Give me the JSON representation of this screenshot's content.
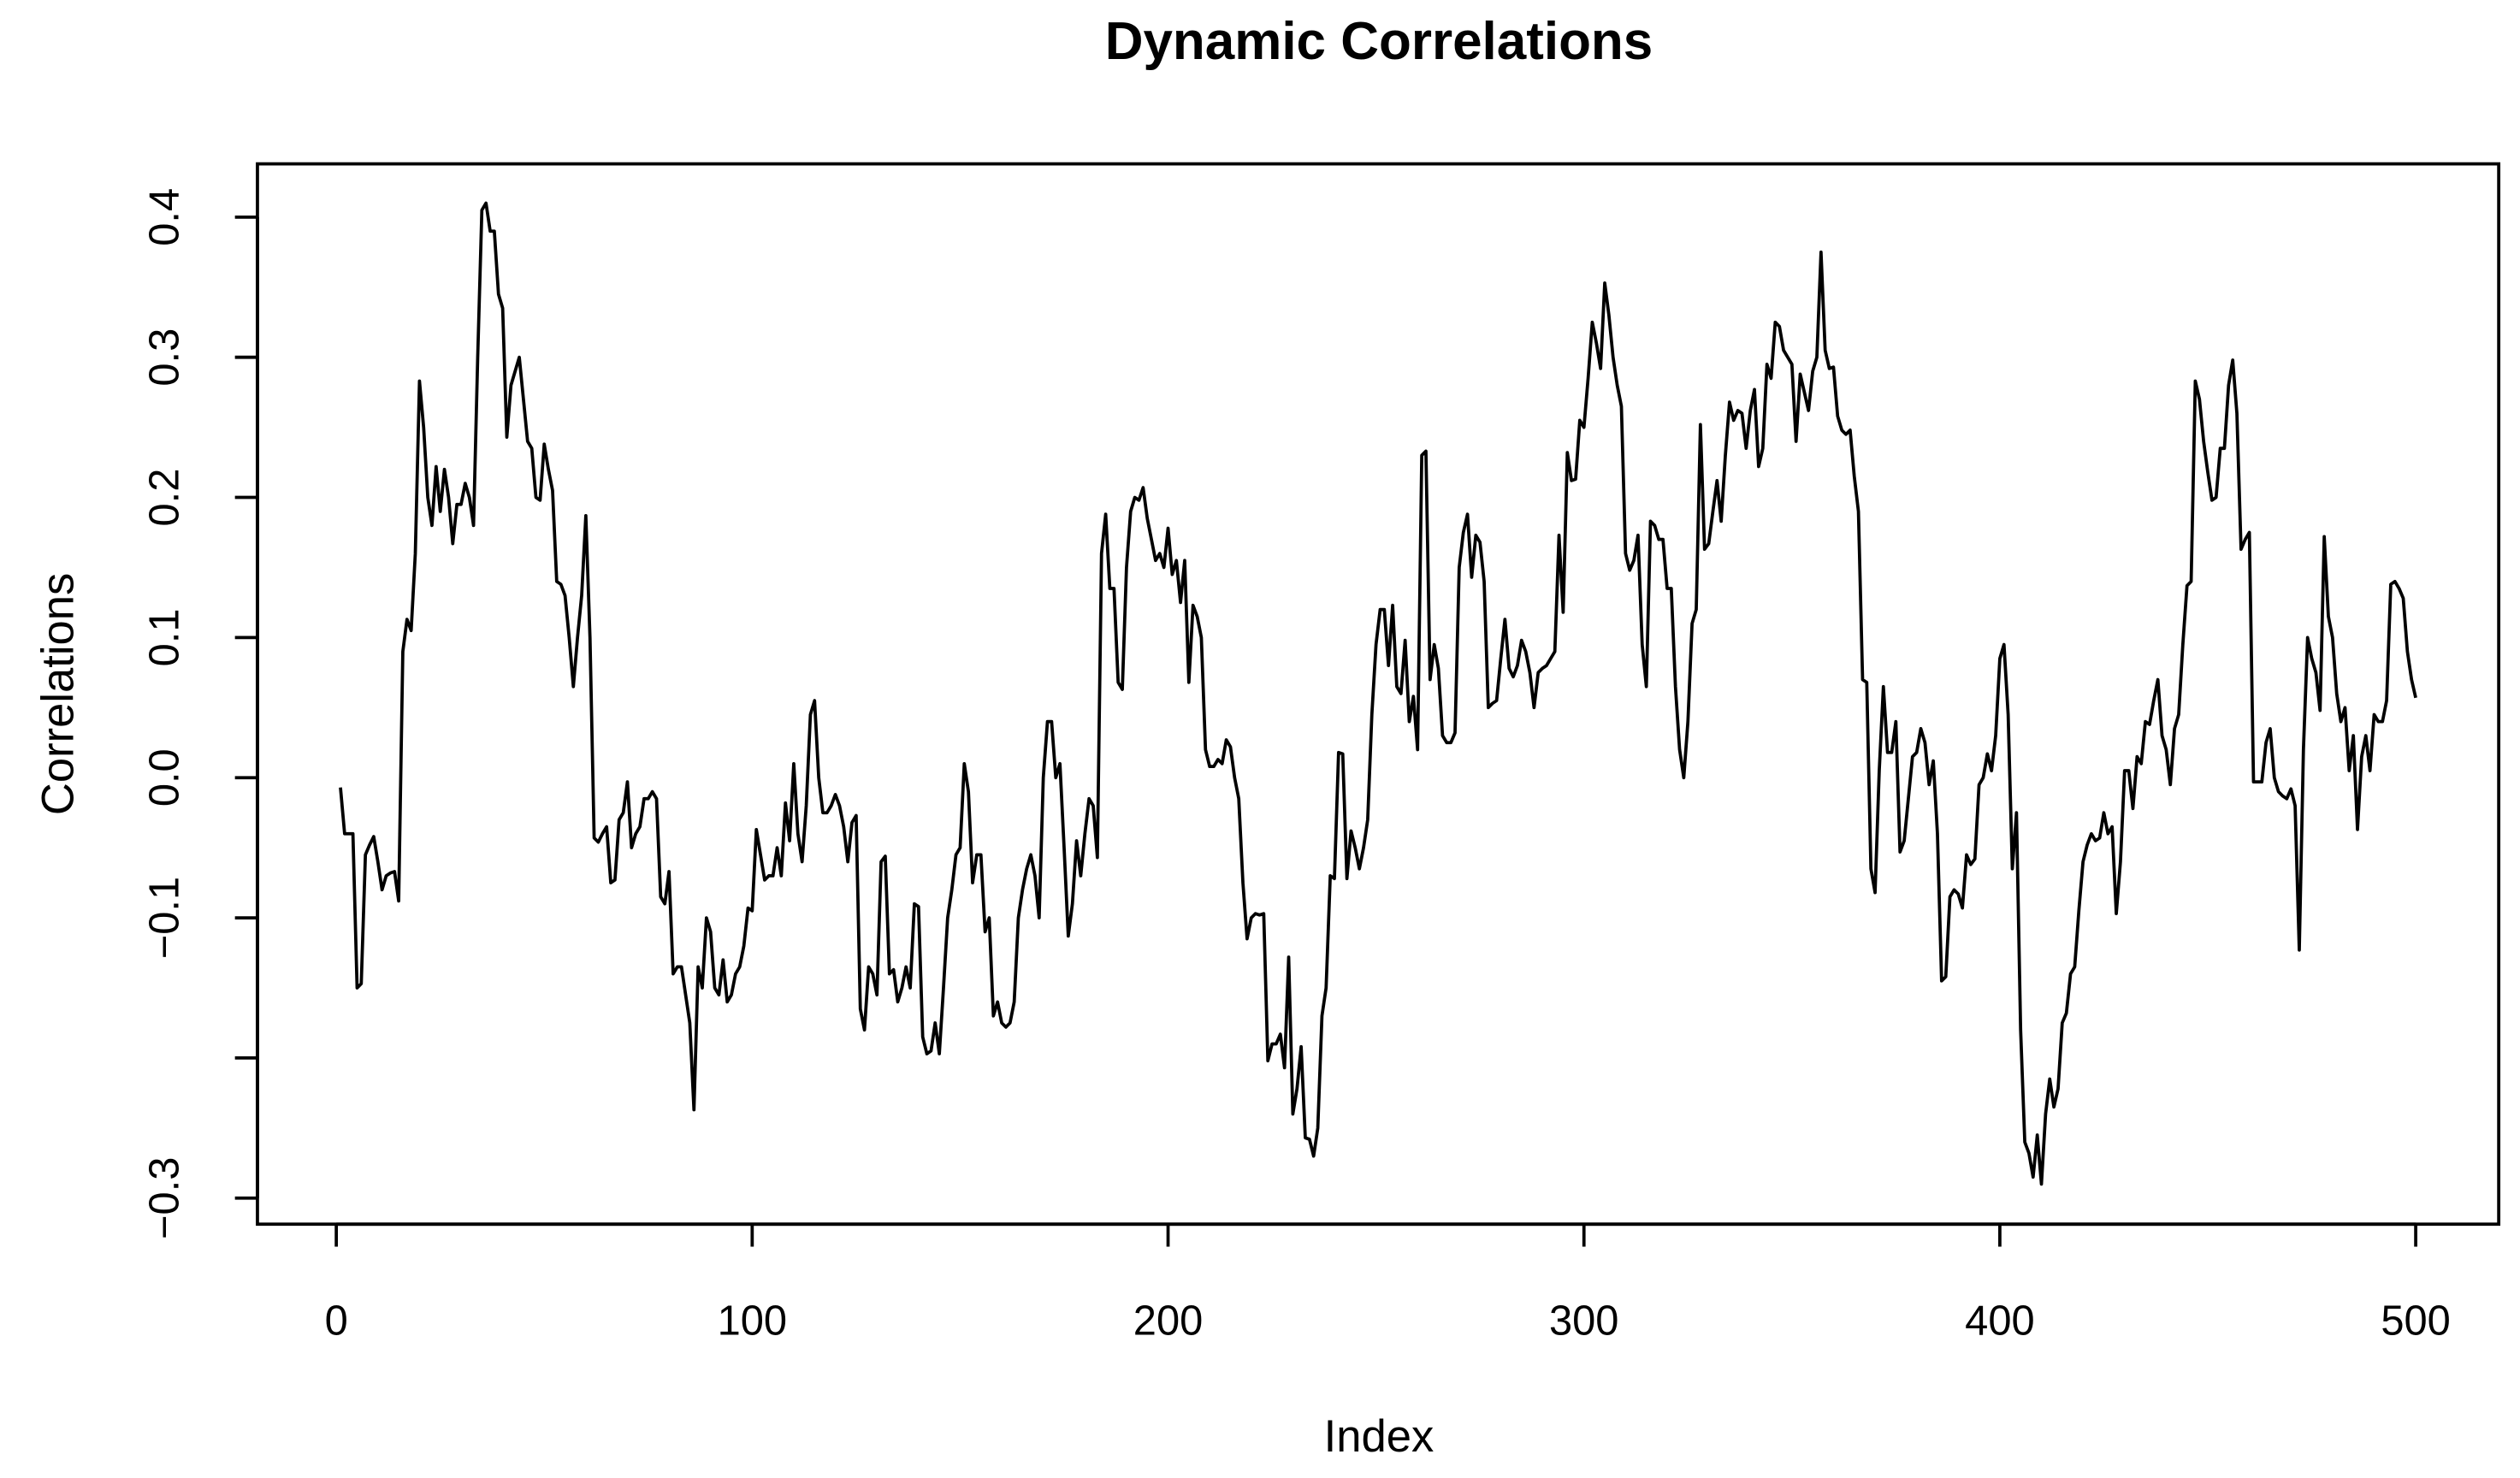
{
  "chart_data": {
    "type": "line",
    "title": "Dynamic Correlations",
    "x_label": "Index",
    "y_label": "Correlations",
    "color": "#000000",
    "xlim": [
      -18.96,
      519.96
    ],
    "ylim": [
      -0.3186,
      0.438
    ],
    "xticks": [
      0,
      100,
      200,
      300,
      400,
      500
    ],
    "yticks": [
      {
        "value": -0.3,
        "label": "−0.3"
      },
      {
        "value": -0.2,
        "label": null
      },
      {
        "value": -0.1,
        "label": "−0.1"
      },
      {
        "value": 0,
        "label": "0.0"
      },
      0.1,
      0.2,
      0.3,
      0.4
    ],
    "x": [
      1,
      2,
      3,
      4,
      5,
      6,
      7,
      8,
      9,
      10,
      11,
      12,
      13,
      14,
      15,
      16,
      17,
      18,
      19,
      20,
      21,
      22,
      23,
      24,
      25,
      26,
      27,
      28,
      29,
      30,
      31,
      32,
      33,
      34,
      35,
      36,
      37,
      38,
      39,
      40,
      41,
      42,
      43,
      44,
      45,
      46,
      47,
      48,
      49,
      50,
      51,
      52,
      53,
      54,
      55,
      56,
      57,
      58,
      59,
      60,
      61,
      62,
      63,
      64,
      65,
      66,
      67,
      68,
      69,
      70,
      71,
      72,
      73,
      74,
      75,
      76,
      77,
      78,
      79,
      80,
      81,
      82,
      83,
      84,
      85,
      86,
      87,
      88,
      89,
      90,
      91,
      92,
      93,
      94,
      95,
      96,
      97,
      98,
      99,
      100,
      101,
      102,
      103,
      104,
      105,
      106,
      107,
      108,
      109,
      110,
      111,
      112,
      113,
      114,
      115,
      116,
      117,
      118,
      119,
      120,
      121,
      122,
      123,
      124,
      125,
      126,
      127,
      128,
      129,
      130,
      131,
      132,
      133,
      134,
      135,
      136,
      137,
      138,
      139,
      140,
      141,
      142,
      143,
      144,
      145,
      146,
      147,
      148,
      149,
      150,
      151,
      152,
      153,
      154,
      155,
      156,
      157,
      158,
      159,
      160,
      161,
      162,
      163,
      164,
      165,
      166,
      167,
      168,
      169,
      170,
      171,
      172,
      173,
      174,
      175,
      176,
      177,
      178,
      179,
      180,
      181,
      182,
      183,
      184,
      185,
      186,
      187,
      188,
      189,
      190,
      191,
      192,
      193,
      194,
      195,
      196,
      197,
      198,
      199,
      200,
      201,
      202,
      203,
      204,
      205,
      206,
      207,
      208,
      209,
      210,
      211,
      212,
      213,
      214,
      215,
      216,
      217,
      218,
      219,
      220,
      221,
      222,
      223,
      224,
      225,
      226,
      227,
      228,
      229,
      230,
      231,
      232,
      233,
      234,
      235,
      236,
      237,
      238,
      239,
      240,
      241,
      242,
      243,
      244,
      245,
      246,
      247,
      248,
      249,
      250,
      251,
      252,
      253,
      254,
      255,
      256,
      257,
      258,
      259,
      260,
      261,
      262,
      263,
      264,
      265,
      266,
      267,
      268,
      269,
      270,
      271,
      272,
      273,
      274,
      275,
      276,
      277,
      278,
      279,
      280,
      281,
      282,
      283,
      284,
      285,
      286,
      287,
      288,
      289,
      290,
      291,
      292,
      293,
      294,
      295,
      296,
      297,
      298,
      299,
      300,
      301,
      302,
      303,
      304,
      305,
      306,
      307,
      308,
      309,
      310,
      311,
      312,
      313,
      314,
      315,
      316,
      317,
      318,
      319,
      320,
      321,
      322,
      323,
      324,
      325,
      326,
      327,
      328,
      329,
      330,
      331,
      332,
      333,
      334,
      335,
      336,
      337,
      338,
      339,
      340,
      341,
      342,
      343,
      344,
      345,
      346,
      347,
      348,
      349,
      350,
      351,
      352,
      353,
      354,
      355,
      356,
      357,
      358,
      359,
      360,
      361,
      362,
      363,
      364,
      365,
      366,
      367,
      368,
      369,
      370,
      371,
      372,
      373,
      374,
      375,
      376,
      377,
      378,
      379,
      380,
      381,
      382,
      383,
      384,
      385,
      386,
      387,
      388,
      389,
      390,
      391,
      392,
      393,
      394,
      395,
      396,
      397,
      398,
      399,
      400,
      401,
      402,
      403,
      404,
      405,
      406,
      407,
      408,
      409,
      410,
      411,
      412,
      413,
      414,
      415,
      416,
      417,
      418,
      419,
      420,
      421,
      422,
      423,
      424,
      425,
      426,
      427,
      428,
      429,
      430,
      431,
      432,
      433,
      434,
      435,
      436,
      437,
      438,
      439,
      440,
      441,
      442,
      443,
      444,
      445,
      446,
      447,
      448,
      449,
      450,
      451,
      452,
      453,
      454,
      455,
      456,
      457,
      458,
      459,
      460,
      461,
      462,
      463,
      464,
      465,
      466,
      467,
      468,
      469,
      470,
      471,
      472,
      473,
      474,
      475,
      476,
      477,
      478,
      479,
      480,
      481,
      482,
      483,
      484,
      485,
      486,
      487,
      488,
      489,
      490,
      491,
      492,
      493,
      494,
      495,
      496,
      497,
      498,
      499,
      500
    ],
    "values": [
      -0.007,
      -0.04,
      -0.04,
      -0.04,
      -0.15,
      -0.147,
      -0.055,
      -0.048,
      -0.042,
      -0.06,
      -0.08,
      -0.07,
      -0.068,
      -0.067,
      -0.088,
      0.09,
      0.113,
      0.105,
      0.16,
      0.283,
      0.25,
      0.2,
      0.18,
      0.222,
      0.19,
      0.22,
      0.2,
      0.167,
      0.195,
      0.195,
      0.21,
      0.2,
      0.18,
      0.3,
      0.405,
      0.41,
      0.39,
      0.39,
      0.345,
      0.335,
      0.243,
      0.28,
      0.29,
      0.3,
      0.27,
      0.24,
      0.235,
      0.2,
      0.198,
      0.238,
      0.22,
      0.205,
      0.14,
      0.138,
      0.13,
      0.1,
      0.065,
      0.1,
      0.13,
      0.187,
      0.1,
      -0.043,
      -0.046,
      -0.04,
      -0.035,
      -0.075,
      -0.073,
      -0.03,
      -0.025,
      -0.003,
      -0.05,
      -0.04,
      -0.035,
      -0.015,
      -0.015,
      -0.01,
      -0.015,
      -0.085,
      -0.09,
      -0.067,
      -0.14,
      -0.135,
      -0.135,
      -0.155,
      -0.175,
      -0.237,
      -0.135,
      -0.15,
      -0.1,
      -0.11,
      -0.15,
      -0.155,
      -0.13,
      -0.16,
      -0.155,
      -0.14,
      -0.135,
      -0.12,
      -0.093,
      -0.095,
      -0.037,
      -0.055,
      -0.073,
      -0.07,
      -0.07,
      -0.05,
      -0.07,
      -0.018,
      -0.045,
      0.01,
      -0.04,
      -0.06,
      -0.02,
      0.045,
      0.055,
      0,
      -0.025,
      -0.025,
      -0.02,
      -0.012,
      -0.02,
      -0.035,
      -0.06,
      -0.032,
      -0.027,
      -0.165,
      -0.18,
      -0.135,
      -0.14,
      -0.155,
      -0.06,
      -0.056,
      -0.14,
      -0.137,
      -0.16,
      -0.15,
      -0.135,
      -0.15,
      -0.09,
      -0.092,
      -0.185,
      -0.197,
      -0.195,
      -0.175,
      -0.197,
      -0.15,
      -0.1,
      -0.08,
      -0.055,
      -0.05,
      0.01,
      -0.01,
      -0.075,
      -0.055,
      -0.055,
      -0.11,
      -0.1,
      -0.17,
      -0.16,
      -0.175,
      -0.178,
      -0.175,
      -0.16,
      -0.1,
      -0.08,
      -0.065,
      -0.055,
      -0.07,
      -0.1,
      0,
      0.04,
      0.04,
      0,
      0.01,
      -0.05,
      -0.113,
      -0.09,
      -0.045,
      -0.07,
      -0.04,
      -0.015,
      -0.02,
      -0.057,
      0.16,
      0.188,
      0.135,
      0.135,
      0.068,
      0.063,
      0.15,
      0.19,
      0.2,
      0.198,
      0.207,
      0.185,
      0.17,
      0.155,
      0.16,
      0.15,
      0.178,
      0.145,
      0.155,
      0.125,
      0.155,
      0.068,
      0.123,
      0.115,
      0.1,
      0.02,
      0.008,
      0.008,
      0.013,
      0.01,
      0.027,
      0.022,
      0,
      -0.015,
      -0.075,
      -0.115,
      -0.1,
      -0.097,
      -0.098,
      -0.097,
      -0.202,
      -0.19,
      -0.19,
      -0.183,
      -0.207,
      -0.128,
      -0.24,
      -0.222,
      -0.192,
      -0.257,
      -0.258,
      -0.27,
      -0.25,
      -0.17,
      -0.15,
      -0.07,
      -0.072,
      0.018,
      0.017,
      -0.072,
      -0.038,
      -0.05,
      -0.065,
      -0.05,
      -0.03,
      0.045,
      0.095,
      0.12,
      0.12,
      0.08,
      0.123,
      0.065,
      0.06,
      0.098,
      0.04,
      0.058,
      0.02,
      0.23,
      0.233,
      0.07,
      0.095,
      0.078,
      0.03,
      0.025,
      0.025,
      0.032,
      0.15,
      0.175,
      0.188,
      0.143,
      0.173,
      0.168,
      0.14,
      0.05,
      0.053,
      0.055,
      0.085,
      0.113,
      0.078,
      0.072,
      0.08,
      0.098,
      0.09,
      0.075,
      0.05,
      0.075,
      0.078,
      0.08,
      0.085,
      0.09,
      0.173,
      0.118,
      0.232,
      0.212,
      0.213,
      0.255,
      0.25,
      0.285,
      0.325,
      0.31,
      0.292,
      0.353,
      0.33,
      0.3,
      0.28,
      0.265,
      0.16,
      0.148,
      0.155,
      0.173,
      0.095,
      0.065,
      0.183,
      0.18,
      0.17,
      0.17,
      0.135,
      0.135,
      0.065,
      0.02,
      0,
      0.04,
      0.11,
      0.12,
      0.252,
      0.163,
      0.167,
      0.19,
      0.212,
      0.183,
      0.23,
      0.268,
      0.255,
      0.262,
      0.26,
      0.235,
      0.262,
      0.277,
      0.222,
      0.235,
      0.295,
      0.285,
      0.325,
      0.322,
      0.305,
      0.3,
      0.295,
      0.24,
      0.288,
      0.275,
      0.262,
      0.29,
      0.3,
      0.375,
      0.305,
      0.292,
      0.293,
      0.258,
      0.248,
      0.245,
      0.248,
      0.215,
      0.19,
      0.07,
      0.068,
      -0.065,
      -0.082,
      0.005,
      0.065,
      0.018,
      0.018,
      0.04,
      -0.053,
      -0.045,
      -0.015,
      0.015,
      0.018,
      0.035,
      0.025,
      -0.005,
      0.012,
      -0.04,
      -0.145,
      -0.142,
      -0.085,
      -0.08,
      -0.083,
      -0.093,
      -0.055,
      -0.062,
      -0.058,
      -0.005,
      0,
      0.017,
      0.005,
      0.03,
      0.085,
      0.095,
      0.045,
      -0.065,
      -0.025,
      -0.18,
      -0.26,
      -0.268,
      -0.285,
      -0.255,
      -0.29,
      -0.24,
      -0.215,
      -0.235,
      -0.222,
      -0.175,
      -0.168,
      -0.14,
      -0.135,
      -0.095,
      -0.06,
      -0.048,
      -0.04,
      -0.045,
      -0.043,
      -0.025,
      -0.04,
      -0.035,
      -0.097,
      -0.06,
      0.005,
      0.005,
      -0.022,
      0.015,
      0.01,
      0.04,
      0.038,
      0.055,
      0.07,
      0.03,
      0.02,
      -0.005,
      0.035,
      0.045,
      0.095,
      0.137,
      0.14,
      0.283,
      0.27,
      0.24,
      0.218,
      0.198,
      0.2,
      0.235,
      0.235,
      0.28,
      0.298,
      0.26,
      0.163,
      0.17,
      0.175,
      -0.003,
      -0.003,
      -0.003,
      0.025,
      0.035,
      0,
      -0.01,
      -0.013,
      -0.015,
      -0.008,
      -0.02,
      -0.123,
      0.02,
      0.1,
      0.085,
      0.075,
      0.048,
      0.172,
      0.115,
      0.1,
      0.06,
      0.04,
      0.05,
      0.005,
      0.03,
      -0.037,
      0.015,
      0.03,
      0.005,
      0.045,
      0.04,
      0.04,
      0.055,
      0.138,
      0.14,
      0.135,
      0.128,
      0.09,
      0.07,
      0.057
    ]
  }
}
